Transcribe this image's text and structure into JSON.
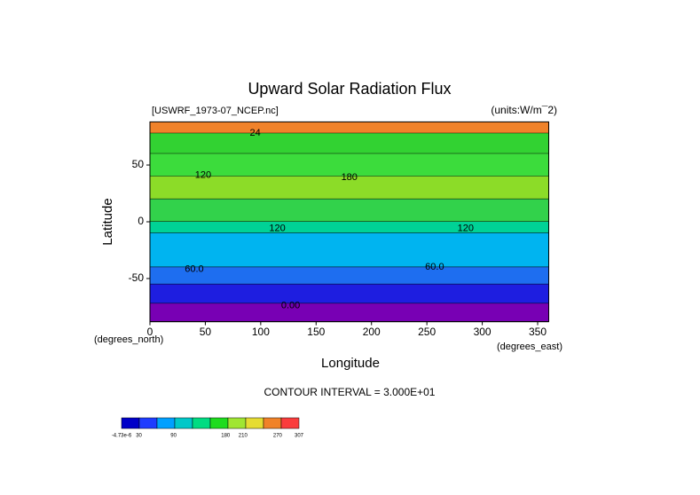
{
  "chart_data": {
    "type": "contour-map",
    "title": "Upward Solar Radiation Flux",
    "subtitle_left": "[USWRF_1973-07_NCEP.nc]",
    "subtitle_right": "(units:W/m¯2)",
    "x_label": "Longitude",
    "y_label": "Latitude",
    "x_unit": "(degrees_east)",
    "y_unit": "(degrees_north)",
    "footer": "CONTOUR INTERVAL = 3.000E+01",
    "xlim": [
      0,
      360
    ],
    "ylim": [
      -88,
      88
    ],
    "xticks": [
      0,
      50,
      100,
      150,
      200,
      250,
      300,
      350
    ],
    "yticks": [
      -50,
      0,
      50
    ],
    "bands": [
      {
        "lat": [
          78,
          88
        ],
        "value": 275,
        "color": "#f0822a"
      },
      {
        "lat": [
          60,
          78
        ],
        "value": 170,
        "color": "#32d232"
      },
      {
        "lat": [
          40,
          60
        ],
        "value": 160,
        "color": "#3cdc3c"
      },
      {
        "lat": [
          20,
          40
        ],
        "value": 190,
        "color": "#8cdc28"
      },
      {
        "lat": [
          0,
          20
        ],
        "value": 150,
        "color": "#32d24b"
      },
      {
        "lat": [
          -10,
          0
        ],
        "value": 130,
        "color": "#00d296"
      },
      {
        "lat": [
          -40,
          -10
        ],
        "value": 100,
        "color": "#00b4f0"
      },
      {
        "lat": [
          -55,
          -40
        ],
        "value": 50,
        "color": "#1e6ef0"
      },
      {
        "lat": [
          -72,
          -55
        ],
        "value": 20,
        "color": "#1e1ee0"
      },
      {
        "lat": [
          -88,
          -72
        ],
        "value": 0,
        "color": "#7800b4"
      }
    ],
    "contour_labels": [
      {
        "label": "24",
        "lon": 95,
        "lat": 78
      },
      {
        "label": "120",
        "lon": 48,
        "lat": 41
      },
      {
        "label": "180",
        "lon": 180,
        "lat": 39
      },
      {
        "label": "120",
        "lon": 115,
        "lat": -6
      },
      {
        "label": "120",
        "lon": 285,
        "lat": -6
      },
      {
        "label": "60.0",
        "lon": 40,
        "lat": -42
      },
      {
        "label": "60.0",
        "lon": 257,
        "lat": -40
      },
      {
        "label": "0.00",
        "lon": 127,
        "lat": -74
      }
    ],
    "colorbar": {
      "colors": [
        "#0000c8",
        "#1e3cff",
        "#00a0ff",
        "#00c8c8",
        "#00dc82",
        "#1edc1e",
        "#a0e632",
        "#e6dc32",
        "#f08228",
        "#fa3c3c"
      ],
      "labels": [
        {
          "value": -4.73e-06,
          "label": "-4.73e-6"
        },
        30,
        90,
        180,
        210,
        270,
        307
      ]
    }
  }
}
